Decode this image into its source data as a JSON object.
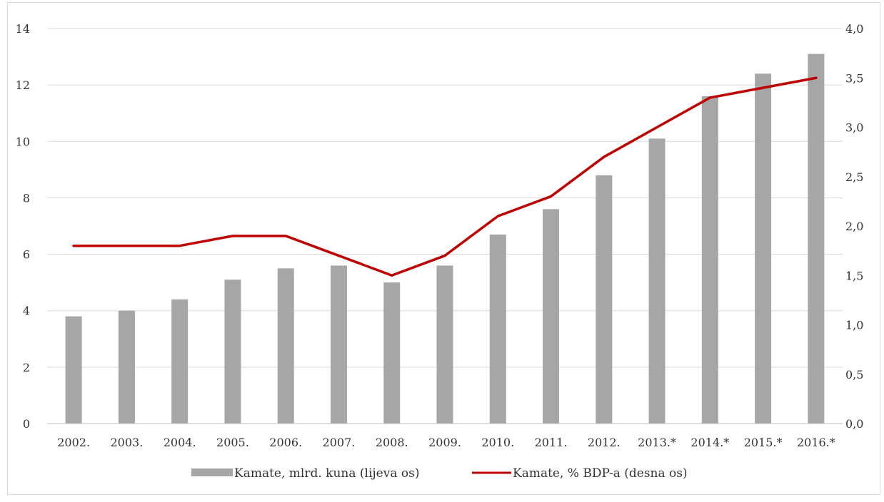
{
  "chart_data": {
    "type": "bar",
    "categories": [
      "2002.",
      "2003.",
      "2004.",
      "2005.",
      "2006.",
      "2007.",
      "2008.",
      "2009.",
      "2010.",
      "2011.",
      "2012.",
      "2013.*",
      "2014.*",
      "2015.*",
      "2016.*"
    ],
    "series": [
      {
        "name": "Kamate, mlrd. kuna (lijeva os)",
        "type": "bar",
        "axis": "left",
        "color": "#a6a6a6",
        "values": [
          3.8,
          4.0,
          4.4,
          5.1,
          5.5,
          5.6,
          5.0,
          5.6,
          6.7,
          7.6,
          8.8,
          10.1,
          11.6,
          12.4,
          13.1
        ]
      },
      {
        "name": "Kamate, % BDP-a (desna os)",
        "type": "line",
        "axis": "right",
        "color": "#c00000",
        "values": [
          1.8,
          1.8,
          1.8,
          1.9,
          1.9,
          1.7,
          1.5,
          1.7,
          2.1,
          2.3,
          2.7,
          3.0,
          3.3,
          3.4,
          3.5
        ]
      }
    ],
    "y_left": {
      "ylim": [
        0,
        14
      ],
      "ticks": [
        "0",
        "2",
        "4",
        "6",
        "8",
        "10",
        "12",
        "14"
      ]
    },
    "y_right": {
      "ylim": [
        0,
        4
      ],
      "ticks": [
        "0,0",
        "0,5",
        "1,0",
        "1,5",
        "2,0",
        "2,5",
        "3,0",
        "3,5",
        "4,0"
      ]
    },
    "grid": true,
    "legend_position": "bottom"
  }
}
